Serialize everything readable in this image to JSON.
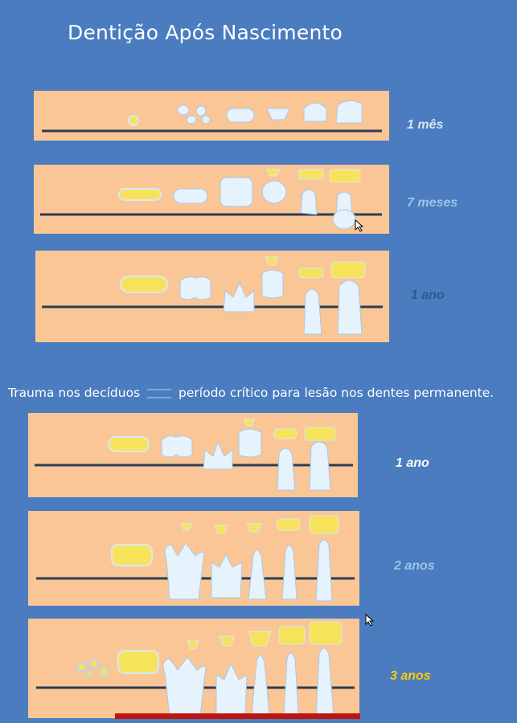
{
  "title": "Dentição Após Nascimento",
  "stages_top": [
    {
      "label": "1 mês",
      "color": "#d6e6f5"
    },
    {
      "label": "7  meses",
      "color": "#9cc4ea"
    },
    {
      "label": "1 ano",
      "color": "#2d5a8c"
    }
  ],
  "subtitle": {
    "left": "Trauma nos decíduos",
    "right": "período crítico para lesão nos dentes permanente."
  },
  "stages_bottom": [
    {
      "label": "1 ano",
      "color": "#ffffff"
    },
    {
      "label": "2 anos",
      "color": "#9cc4ea"
    },
    {
      "label": "3 anos",
      "color": "#ffcc00"
    }
  ],
  "colors": {
    "background": "#4a7cbf",
    "panel": "#fac696",
    "gumline": "#2b3d55",
    "tooth": "#e6f2fc",
    "crown_yellow": "#f6e35a",
    "critical_bar": "#c0140f"
  }
}
